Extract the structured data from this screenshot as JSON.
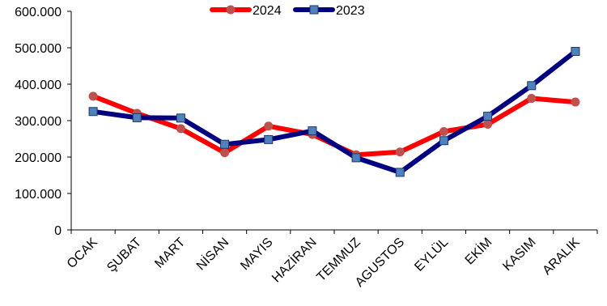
{
  "chart_data": {
    "type": "line",
    "categories": [
      "OCAK",
      "ŞUBAT",
      "MART",
      "NİSAN",
      "MAYIS",
      "HAZİRAN",
      "TEMMUZ",
      "AGUSTOS",
      "EYLÜL",
      "EKİM",
      "KASIM",
      "ARALIK"
    ],
    "series": [
      {
        "name": "2024",
        "color": "#ff0000",
        "marker_color": "#c0504d",
        "marker": "circle",
        "values": [
          367000,
          320000,
          278000,
          212000,
          285000,
          262000,
          206000,
          214000,
          270000,
          290000,
          361000,
          351000
        ]
      },
      {
        "name": "2023",
        "color": "#000080",
        "marker_color": "#4f81bd",
        "marker": "square",
        "values": [
          325000,
          308000,
          307000,
          235000,
          248000,
          272000,
          198000,
          158000,
          245000,
          312000,
          396000,
          490000
        ]
      }
    ],
    "yticks": [
      "0",
      "100.000",
      "200.000",
      "300.000",
      "400.000",
      "500.000",
      "600.000"
    ],
    "ylim": [
      0,
      600000
    ],
    "grid": false,
    "legend_position": "top-center"
  }
}
